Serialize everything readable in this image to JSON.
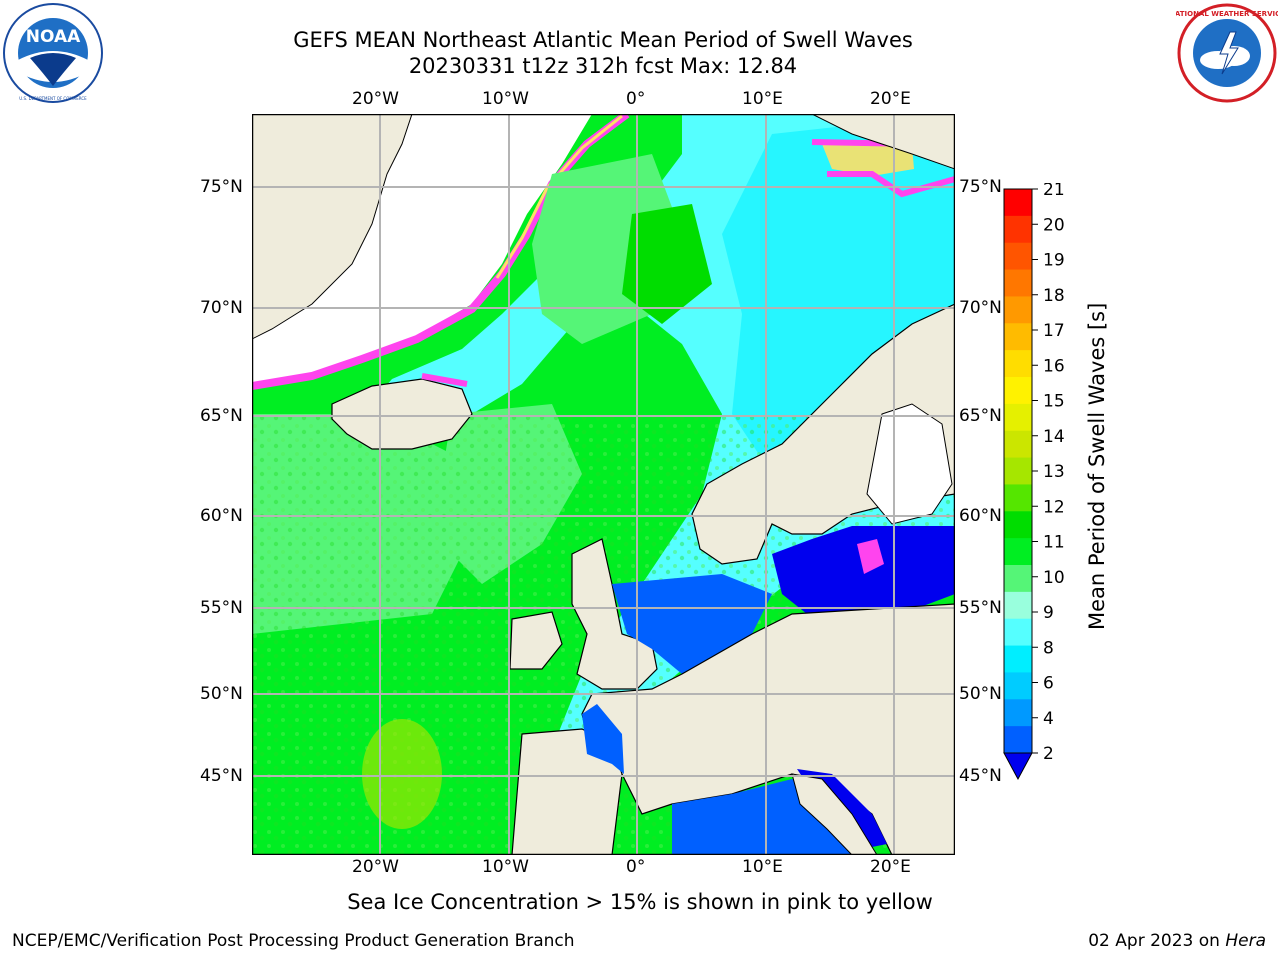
{
  "header": {
    "title_line1": "GEFS MEAN Northeast Atlantic Mean Period of Swell Waves",
    "title_line2": "20230331 t12z 312h fcst   Max: 12.84"
  },
  "logos": {
    "left": {
      "name": "NOAA",
      "ring_text": "NATIONAL OCEANIC AND ATMOSPHERIC ADMINISTRATION • U.S. DEPARTMENT OF COMMERCE"
    },
    "right": {
      "name": "NATIONAL WEATHER SERVICE"
    }
  },
  "map": {
    "lon_labels": [
      "20°W",
      "10°W",
      "0°",
      "10°E",
      "20°E"
    ],
    "lat_labels": [
      "75°N",
      "70°N",
      "65°N",
      "60°N",
      "55°N",
      "50°N",
      "45°N"
    ],
    "colors": {
      "land": "#efecdc",
      "no_data": "#ffffff",
      "grid": "#b4b4b4",
      "ice_edge": [
        "#ff44ee",
        "#ffe066"
      ]
    }
  },
  "colorbar": {
    "label": "Mean Period of Swell Waves [s]",
    "ticks": [
      "21",
      "20",
      "19",
      "18",
      "17",
      "16",
      "15",
      "14",
      "13",
      "12",
      "11",
      "10",
      "9",
      "8",
      "6",
      "4",
      "2"
    ],
    "colors_top_to_bottom": [
      "#ff0000",
      "#ff3300",
      "#ff5500",
      "#ff7700",
      "#ff9900",
      "#ffbb00",
      "#ffdd00",
      "#fff200",
      "#e5f000",
      "#cbe600",
      "#a6e600",
      "#55e600",
      "#00dd00",
      "#00ee22",
      "#55f577",
      "#99ffdd",
      "#55ffff",
      "#00eeff",
      "#00ccff",
      "#0099ff",
      "#0060ff"
    ],
    "extend_color": "#0000ee"
  },
  "caption": "Sea Ice Concentration > 15% is shown in pink to yellow",
  "footer": {
    "left": "NCEP/EMC/Verification Post Processing Product Generation Branch",
    "right_prefix": "02 Apr 2023 on ",
    "right_host": "Hera"
  }
}
